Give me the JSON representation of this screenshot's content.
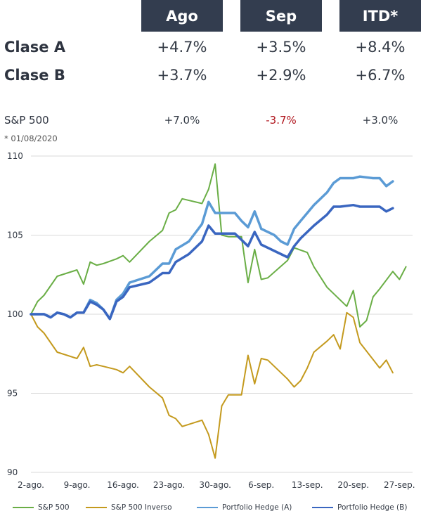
{
  "table": {
    "headers": [
      "Ago",
      "Sep",
      "ITD*"
    ],
    "rows": [
      {
        "label": "Clase A",
        "values": [
          "+4.7%",
          "+3.5%",
          "+8.4%"
        ]
      },
      {
        "label": "Clase B",
        "values": [
          "+3.7%",
          "+2.9%",
          "+6.7%"
        ]
      }
    ],
    "benchmark": {
      "label": "S&P 500",
      "values": [
        "+7.0%",
        "-3.7%",
        "+3.0%"
      ]
    },
    "note": "* 01/08/2020"
  },
  "colors": {
    "header_bg": "#333d4f",
    "negative": "#b0141c",
    "sp500": "#6aae46",
    "sp500_inverso": "#c49a1e",
    "hedge_a": "#5b9bd5",
    "hedge_b": "#3a66c0"
  },
  "chart_data": {
    "type": "line",
    "ylim": [
      90,
      110
    ],
    "yticks": [
      90,
      95,
      100,
      105,
      110
    ],
    "xlim": [
      0,
      58
    ],
    "xticks": [
      {
        "label": "2-ago.",
        "day": 0
      },
      {
        "label": "9-ago.",
        "day": 7
      },
      {
        "label": "16-ago.",
        "day": 14
      },
      {
        "label": "23-ago.",
        "day": 21
      },
      {
        "label": "30-ago.",
        "day": 28
      },
      {
        "label": "6-sep.",
        "day": 35
      },
      {
        "label": "13-sep.",
        "day": 42
      },
      {
        "label": "20-sep.",
        "day": 49
      },
      {
        "label": "27-sep.",
        "day": 56
      }
    ],
    "series": [
      {
        "name": "S&P 500",
        "color": "#6aae46",
        "width": 2,
        "points": [
          [
            0,
            100
          ],
          [
            1,
            100.8
          ],
          [
            2,
            101.2
          ],
          [
            4,
            102.4
          ],
          [
            7,
            102.8
          ],
          [
            8,
            101.9
          ],
          [
            9,
            103.3
          ],
          [
            10,
            103.1
          ],
          [
            11,
            103.2
          ],
          [
            13,
            103.5
          ],
          [
            14,
            103.7
          ],
          [
            15,
            103.3
          ],
          [
            18,
            104.6
          ],
          [
            20,
            105.3
          ],
          [
            21,
            106.4
          ],
          [
            22,
            106.6
          ],
          [
            23,
            107.3
          ],
          [
            26,
            107.0
          ],
          [
            27,
            107.9
          ],
          [
            28,
            109.5
          ],
          [
            29,
            105.0
          ],
          [
            30,
            104.9
          ],
          [
            31,
            104.9
          ],
          [
            32,
            104.9
          ],
          [
            33,
            102.0
          ],
          [
            34,
            104.1
          ],
          [
            35,
            102.2
          ],
          [
            36,
            102.3
          ],
          [
            39,
            103.4
          ],
          [
            40,
            104.2
          ],
          [
            42,
            103.9
          ],
          [
            43,
            103.0
          ],
          [
            45,
            101.7
          ],
          [
            48,
            100.5
          ],
          [
            49,
            101.5
          ],
          [
            50,
            99.2
          ],
          [
            51,
            99.6
          ],
          [
            52,
            101.1
          ],
          [
            53,
            101.6
          ],
          [
            55,
            102.7
          ],
          [
            56,
            102.2
          ],
          [
            57,
            103.0
          ]
        ]
      },
      {
        "name": "S&P 500 Inverso",
        "color": "#c49a1e",
        "width": 2,
        "points": [
          [
            0,
            100
          ],
          [
            1,
            99.2
          ],
          [
            2,
            98.8
          ],
          [
            4,
            97.6
          ],
          [
            7,
            97.2
          ],
          [
            8,
            97.9
          ],
          [
            9,
            96.7
          ],
          [
            10,
            96.8
          ],
          [
            11,
            96.7
          ],
          [
            13,
            96.5
          ],
          [
            14,
            96.3
          ],
          [
            15,
            96.7
          ],
          [
            18,
            95.4
          ],
          [
            20,
            94.7
          ],
          [
            21,
            93.6
          ],
          [
            22,
            93.4
          ],
          [
            23,
            92.9
          ],
          [
            26,
            93.3
          ],
          [
            27,
            92.4
          ],
          [
            28,
            90.9
          ],
          [
            29,
            94.2
          ],
          [
            30,
            94.9
          ],
          [
            31,
            94.9
          ],
          [
            32,
            94.9
          ],
          [
            33,
            97.4
          ],
          [
            34,
            95.6
          ],
          [
            35,
            97.2
          ],
          [
            36,
            97.1
          ],
          [
            39,
            95.9
          ],
          [
            40,
            95.4
          ],
          [
            41,
            95.8
          ],
          [
            42,
            96.6
          ],
          [
            43,
            97.6
          ],
          [
            45,
            98.3
          ],
          [
            46,
            98.7
          ],
          [
            47,
            97.8
          ],
          [
            48,
            100.1
          ],
          [
            49,
            99.8
          ],
          [
            50,
            98.2
          ],
          [
            53,
            96.6
          ],
          [
            54,
            97.1
          ],
          [
            55,
            96.3
          ]
        ]
      },
      {
        "name": "Portfolio Hedge (A)",
        "color": "#5b9bd5",
        "width": 3.5,
        "points": [
          [
            0,
            100
          ],
          [
            1,
            100
          ],
          [
            2,
            100
          ],
          [
            3,
            99.8
          ],
          [
            4,
            100.1
          ],
          [
            5,
            100
          ],
          [
            6,
            99.8
          ],
          [
            7,
            100.1
          ],
          [
            8,
            100.1
          ],
          [
            9,
            100.9
          ],
          [
            10,
            100.7
          ],
          [
            11,
            100.3
          ],
          [
            12,
            99.7
          ],
          [
            13,
            100.9
          ],
          [
            14,
            101.3
          ],
          [
            15,
            102.0
          ],
          [
            18,
            102.4
          ],
          [
            19,
            102.8
          ],
          [
            20,
            103.2
          ],
          [
            21,
            103.2
          ],
          [
            22,
            104.1
          ],
          [
            24,
            104.6
          ],
          [
            26,
            105.7
          ],
          [
            27,
            107.1
          ],
          [
            28,
            106.4
          ],
          [
            30,
            106.4
          ],
          [
            31,
            106.4
          ],
          [
            32,
            105.9
          ],
          [
            33,
            105.5
          ],
          [
            34,
            106.5
          ],
          [
            35,
            105.4
          ],
          [
            37,
            105.0
          ],
          [
            38,
            104.6
          ],
          [
            39,
            104.4
          ],
          [
            40,
            105.4
          ],
          [
            41,
            105.9
          ],
          [
            42,
            106.4
          ],
          [
            43,
            106.9
          ],
          [
            45,
            107.7
          ],
          [
            46,
            108.3
          ],
          [
            47,
            108.6
          ],
          [
            49,
            108.6
          ],
          [
            50,
            108.7
          ],
          [
            52,
            108.6
          ],
          [
            53,
            108.6
          ],
          [
            54,
            108.1
          ],
          [
            55,
            108.4
          ]
        ]
      },
      {
        "name": "Portfolio Hedge (B)",
        "color": "#3a66c0",
        "width": 3.5,
        "points": [
          [
            0,
            100
          ],
          [
            1,
            100
          ],
          [
            2,
            100
          ],
          [
            3,
            99.8
          ],
          [
            4,
            100.1
          ],
          [
            5,
            100
          ],
          [
            6,
            99.8
          ],
          [
            7,
            100.1
          ],
          [
            8,
            100.1
          ],
          [
            9,
            100.8
          ],
          [
            10,
            100.6
          ],
          [
            11,
            100.3
          ],
          [
            12,
            99.7
          ],
          [
            13,
            100.8
          ],
          [
            14,
            101.1
          ],
          [
            15,
            101.7
          ],
          [
            18,
            102.0
          ],
          [
            19,
            102.3
          ],
          [
            20,
            102.6
          ],
          [
            21,
            102.6
          ],
          [
            22,
            103.3
          ],
          [
            24,
            103.8
          ],
          [
            26,
            104.6
          ],
          [
            27,
            105.6
          ],
          [
            28,
            105.1
          ],
          [
            30,
            105.1
          ],
          [
            31,
            105.1
          ],
          [
            32,
            104.7
          ],
          [
            33,
            104.3
          ],
          [
            34,
            105.2
          ],
          [
            35,
            104.4
          ],
          [
            37,
            104.0
          ],
          [
            38,
            103.8
          ],
          [
            39,
            103.6
          ],
          [
            40,
            104.3
          ],
          [
            41,
            104.8
          ],
          [
            42,
            105.2
          ],
          [
            43,
            105.6
          ],
          [
            45,
            106.3
          ],
          [
            46,
            106.8
          ],
          [
            47,
            106.8
          ],
          [
            49,
            106.9
          ],
          [
            50,
            106.8
          ],
          [
            52,
            106.8
          ],
          [
            53,
            106.8
          ],
          [
            54,
            106.5
          ],
          [
            55,
            106.7
          ]
        ]
      }
    ],
    "legend": [
      "S&P 500",
      "S&P 500 Inverso",
      "Portfolio Hedge (A)",
      "Portfolio Hedge (B)"
    ],
    "legend_position": "bottom"
  }
}
